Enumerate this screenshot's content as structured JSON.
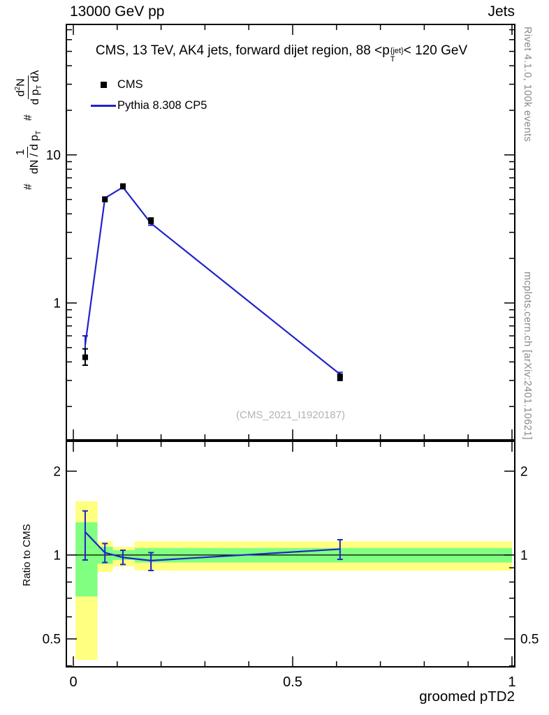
{
  "header": {
    "left": "13000 GeV pp",
    "right": "Jets"
  },
  "title": {
    "pre": "CMS, 13 TeV, AK4 jets, forward dijet region, 88 <",
    "base": "p",
    "sup": "{jet}",
    "sub": "T",
    "post": "< 120 GeV"
  },
  "legend": {
    "cms": "CMS",
    "pythia": "Pythia 8.308 CP5"
  },
  "ylabel": {
    "hash1": "#",
    "num1": "1",
    "den1a": "dN / d p",
    "den1sub": "T",
    "hash2": "#",
    "num2a": "d",
    "num2sup": "2",
    "num2b": "N",
    "den2a": "d p",
    "den2sub": "T",
    "den2b": " dλ"
  },
  "ratio_panel": {
    "ylabel": "Ratio to CMS"
  },
  "xaxis": {
    "label": "groomed pTD2"
  },
  "watermark": "(CMS_2021_I1920187)",
  "side_notes": {
    "rivet": "Rivet 4.1.0, 100k events",
    "mcplots": "mcplots.cern.ch [arXiv:2401.10621]"
  },
  "colors": {
    "mc_line": "#2222cc",
    "data_marker": "#000000",
    "band_outer": "#ffff80",
    "band_inner": "#80ff80"
  },
  "chart_data": [
    {
      "id": "main",
      "type": "line",
      "yscale": "log",
      "xlim": [
        0,
        1
      ],
      "ylim": [
        0.119,
        76
      ],
      "frame_x": [
        95,
        737
      ],
      "frame_y": [
        35,
        630
      ],
      "xpad": [
        10,
        4
      ],
      "x_major": [
        0,
        0.5,
        1
      ],
      "x_minor_step": 0.1,
      "x_labels": null,
      "y_labeled": [
        1,
        10
      ],
      "y_labels_right": false,
      "x": [
        0.027,
        0.072,
        0.113,
        0.177,
        0.608
      ],
      "series": [
        {
          "name": "Pythia 8.308 CP5",
          "draw": "line",
          "color": "#2222cc",
          "values": [
            0.52,
            5.1,
            6.05,
            3.45,
            0.33
          ],
          "err_lo": [
            0.43,
            5.0,
            5.9,
            3.35,
            0.32
          ],
          "err_hi": [
            0.6,
            5.2,
            6.2,
            3.55,
            0.34
          ]
        },
        {
          "name": "CMS",
          "draw": "marker",
          "color": "#000000",
          "values": [
            0.43,
            5.0,
            6.15,
            3.6,
            0.315
          ],
          "err_lo": [
            0.38,
            4.85,
            5.95,
            3.45,
            0.3
          ],
          "err_hi": [
            0.49,
            5.15,
            6.35,
            3.75,
            0.33
          ]
        }
      ]
    },
    {
      "id": "ratio",
      "type": "line",
      "yscale": "log",
      "xlim": [
        0,
        1
      ],
      "ylim": [
        0.397,
        2.56
      ],
      "frame_x": [
        95,
        737
      ],
      "frame_y": [
        632,
        955
      ],
      "xpad": [
        10,
        4
      ],
      "x_major": [
        0,
        0.5,
        1
      ],
      "x_minor_step": 0.1,
      "x_labels": [
        "0",
        "0.5",
        "1"
      ],
      "y_labeled": [
        0.5,
        1,
        2
      ],
      "y_labels_right": true,
      "ref_line": 1,
      "band_colors": {
        "outer": "#ffff80",
        "inner": "#80ff80"
      },
      "bands": [
        {
          "x0": 0.005,
          "x1": 0.055,
          "outer": [
            0.42,
            1.56
          ],
          "inner": [
            0.71,
            1.31
          ]
        },
        {
          "x0": 0.055,
          "x1": 0.09,
          "outer": [
            0.87,
            1.12
          ],
          "inner": [
            0.93,
            1.07
          ]
        },
        {
          "x0": 0.09,
          "x1": 0.14,
          "outer": [
            0.91,
            1.07
          ],
          "inner": [
            0.96,
            1.04
          ]
        },
        {
          "x0": 0.14,
          "x1": 0.22,
          "outer": [
            0.88,
            1.12
          ],
          "inner": [
            0.94,
            1.06
          ]
        },
        {
          "x0": 0.22,
          "x1": 1.0,
          "outer": [
            0.88,
            1.12
          ],
          "inner": [
            0.94,
            1.06
          ]
        }
      ],
      "x": [
        0.027,
        0.072,
        0.113,
        0.177,
        0.608
      ],
      "series": [
        {
          "name": "Pythia 8.308 CP5 / CMS",
          "draw": "line",
          "color": "#2222cc",
          "values": [
            1.21,
            1.02,
            0.98,
            0.955,
            1.05
          ],
          "err_lo": [
            0.96,
            0.94,
            0.925,
            0.88,
            0.965
          ],
          "err_hi": [
            1.44,
            1.1,
            1.04,
            1.02,
            1.135
          ]
        }
      ]
    }
  ]
}
